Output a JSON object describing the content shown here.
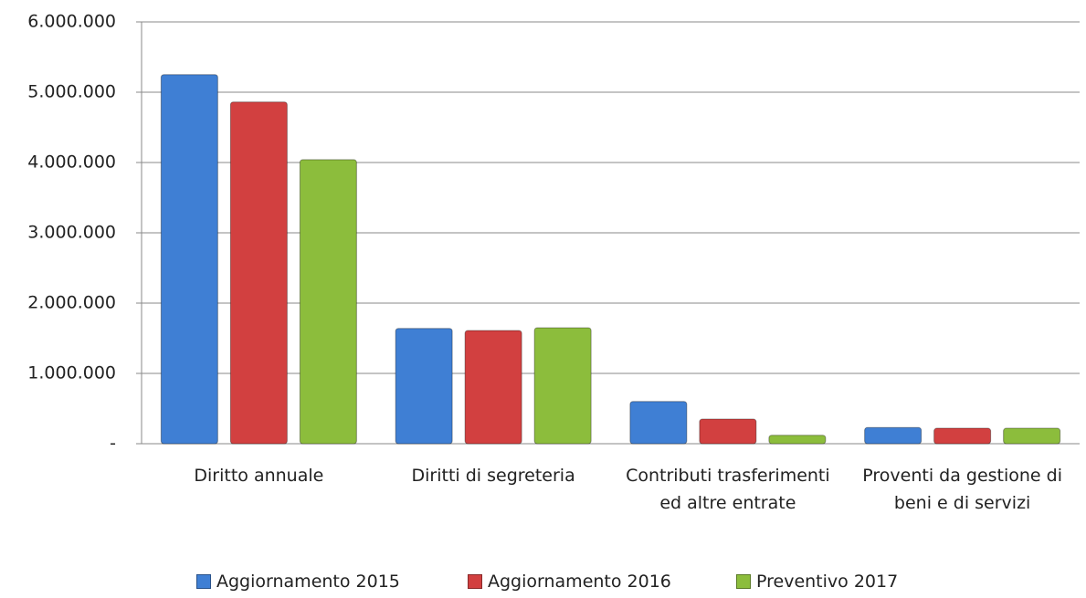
{
  "chart_data": {
    "type": "bar",
    "categories": [
      "Diritto annuale",
      "Diritti di segreteria",
      "Contributi trasferimenti ed altre entrate",
      "Proventi da gestione di beni e di servizi"
    ],
    "series": [
      {
        "name": "Aggiornamento 2015",
        "color": "#3f7fd4",
        "values": [
          5250000,
          1640000,
          600000,
          230000
        ]
      },
      {
        "name": "Aggiornamento 2016",
        "color": "#d24040",
        "values": [
          4860000,
          1610000,
          350000,
          220000
        ]
      },
      {
        "name": "Preventivo 2017",
        "color": "#8cbd3c",
        "values": [
          4040000,
          1650000,
          120000,
          220000
        ]
      }
    ],
    "ylim": [
      0,
      6000000
    ],
    "yticks": [
      {
        "value": 0,
        "label": "-"
      },
      {
        "value": 1000000,
        "label": "1.000.000"
      },
      {
        "value": 2000000,
        "label": "2.000.000"
      },
      {
        "value": 3000000,
        "label": "3.000.000"
      },
      {
        "value": 4000000,
        "label": "4.000.000"
      },
      {
        "value": 5000000,
        "label": "5.000.000"
      },
      {
        "value": 6000000,
        "label": "6.000.000"
      }
    ],
    "grid": true,
    "legend": "bottom"
  }
}
